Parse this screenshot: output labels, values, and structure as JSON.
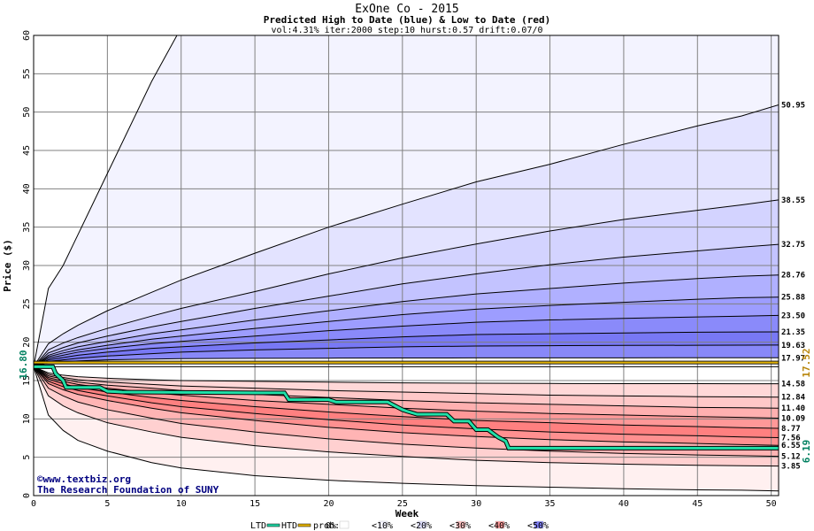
{
  "chart_data": {
    "type": "area",
    "title": "ExOne Co - 2015",
    "subtitle": "Predicted High to Date (blue) &  Low to Date (red)",
    "parameters": "vol:4.31% iter:2000 step:10 hurst:0.57 drift:0.07/0",
    "xlabel": "Week",
    "ylabel": "Price ($)",
    "xlim": [
      0,
      50.5
    ],
    "ylim": [
      0,
      60
    ],
    "grid": true,
    "x_ticks": [
      0,
      5,
      10,
      15,
      20,
      25,
      30,
      35,
      40,
      45,
      50
    ],
    "y_ticks": [
      0,
      5,
      10,
      15,
      20,
      25,
      30,
      35,
      40,
      45,
      50,
      55,
      60
    ],
    "start_price": 16.8,
    "start_label": "16.80",
    "high_marker_label": "17.52",
    "last_label": "6.19",
    "high_series": {
      "x": [
        0,
        1,
        2,
        3,
        5,
        8,
        10,
        15,
        20,
        25,
        30,
        35,
        40,
        45,
        48,
        50.5
      ],
      "contours": [
        {
          "label": "",
          "y": [
            16.8,
            27,
            30,
            34,
            42,
            54,
            61,
            61,
            61,
            61,
            61,
            61,
            61,
            61,
            61,
            61
          ]
        },
        {
          "label": "50.95",
          "y": [
            16.8,
            19.8,
            21.1,
            22.2,
            24.1,
            26.5,
            28.1,
            31.6,
            35.0,
            38.0,
            40.9,
            43.2,
            45.8,
            48.2,
            49.5,
            50.95
          ]
        },
        {
          "label": "38.55",
          "y": [
            16.8,
            19.0,
            19.9,
            20.6,
            21.8,
            23.4,
            24.4,
            26.6,
            28.9,
            31.0,
            32.8,
            34.5,
            36.0,
            37.2,
            37.9,
            38.55
          ]
        },
        {
          "label": "32.75",
          "y": [
            16.8,
            18.6,
            19.3,
            19.9,
            20.8,
            22.0,
            22.7,
            24.4,
            26.0,
            27.6,
            28.9,
            30.1,
            31.1,
            31.9,
            32.4,
            32.75
          ]
        },
        {
          "label": "28.76",
          "y": [
            16.8,
            18.3,
            18.9,
            19.4,
            20.1,
            21.1,
            21.6,
            22.9,
            24.1,
            25.3,
            26.3,
            27.0,
            27.7,
            28.3,
            28.6,
            28.76
          ]
        },
        {
          "label": "25.88",
          "y": [
            16.8,
            18.1,
            18.6,
            19.0,
            19.6,
            20.4,
            20.8,
            21.8,
            22.7,
            23.6,
            24.3,
            24.8,
            25.2,
            25.6,
            25.8,
            25.88
          ]
        },
        {
          "label": "23.50",
          "y": [
            16.8,
            17.9,
            18.3,
            18.7,
            19.2,
            19.8,
            20.1,
            20.8,
            21.5,
            22.1,
            22.6,
            22.9,
            23.1,
            23.3,
            23.4,
            23.5
          ]
        },
        {
          "label": "21.35",
          "y": [
            16.8,
            17.7,
            18.0,
            18.3,
            18.7,
            19.2,
            19.4,
            19.9,
            20.3,
            20.7,
            21.0,
            21.1,
            21.2,
            21.3,
            21.33,
            21.35
          ]
        },
        {
          "label": "19.63",
          "y": [
            16.8,
            17.5,
            17.7,
            17.9,
            18.2,
            18.5,
            18.7,
            19.0,
            19.2,
            19.4,
            19.5,
            19.55,
            19.58,
            19.6,
            19.62,
            19.63
          ]
        },
        {
          "label": "17.97",
          "y": [
            16.8,
            17.3,
            17.45,
            17.55,
            17.7,
            17.8,
            17.85,
            17.9,
            17.92,
            17.94,
            17.95,
            17.96,
            17.96,
            17.97,
            17.97,
            17.97
          ]
        }
      ]
    },
    "low_series": {
      "x": [
        0,
        1,
        2,
        3,
        5,
        8,
        10,
        15,
        20,
        25,
        30,
        35,
        40,
        45,
        48,
        50.5
      ],
      "contours": [
        {
          "label": "14.58",
          "y": [
            16.8,
            16.0,
            15.7,
            15.5,
            15.3,
            15.1,
            15.0,
            14.9,
            14.8,
            14.7,
            14.65,
            14.62,
            14.6,
            14.59,
            14.58,
            14.58
          ]
        },
        {
          "label": "12.84",
          "y": [
            16.8,
            15.8,
            15.4,
            15.1,
            14.8,
            14.5,
            14.3,
            14.0,
            13.7,
            13.5,
            13.3,
            13.1,
            13.0,
            12.9,
            12.86,
            12.84
          ]
        },
        {
          "label": "11.40",
          "y": [
            16.8,
            15.6,
            15.2,
            14.8,
            14.4,
            14.0,
            13.7,
            13.2,
            12.8,
            12.4,
            12.1,
            11.9,
            11.7,
            11.5,
            11.45,
            11.4
          ]
        },
        {
          "label": "10.09",
          "y": [
            16.8,
            15.4,
            14.9,
            14.5,
            14.0,
            13.4,
            13.1,
            12.4,
            11.9,
            11.4,
            11.0,
            10.7,
            10.5,
            10.3,
            10.2,
            10.09
          ]
        },
        {
          "label": "8.77",
          "y": [
            16.8,
            15.2,
            14.6,
            14.1,
            13.5,
            12.8,
            12.4,
            11.6,
            10.9,
            10.3,
            9.8,
            9.5,
            9.2,
            9.0,
            8.85,
            8.77
          ]
        },
        {
          "label": "7.56",
          "y": [
            16.8,
            14.9,
            14.2,
            13.7,
            13.0,
            12.1,
            11.6,
            10.7,
            9.9,
            9.2,
            8.7,
            8.3,
            8.0,
            7.8,
            7.65,
            7.56
          ]
        },
        {
          "label": "6.55",
          "y": [
            16.8,
            14.6,
            13.8,
            13.2,
            12.4,
            11.4,
            10.8,
            9.8,
            8.9,
            8.2,
            7.7,
            7.3,
            7.0,
            6.8,
            6.65,
            6.55
          ]
        },
        {
          "label": "5.12",
          "y": [
            16.8,
            14.0,
            13.0,
            12.2,
            11.2,
            10.1,
            9.4,
            8.3,
            7.4,
            6.7,
            6.2,
            5.8,
            5.5,
            5.3,
            5.2,
            5.12
          ]
        },
        {
          "label": "3.85",
          "y": [
            16.8,
            13.0,
            11.7,
            10.8,
            9.5,
            8.3,
            7.6,
            6.5,
            5.7,
            5.1,
            4.6,
            4.3,
            4.1,
            3.95,
            3.9,
            3.85
          ]
        },
        {
          "label": "",
          "y": [
            16.8,
            10.5,
            8.5,
            7.2,
            5.8,
            4.3,
            3.6,
            2.6,
            2.0,
            1.6,
            1.3,
            1.1,
            0.9,
            0.75,
            0.7,
            0.6
          ]
        }
      ]
    },
    "ltd_trace": {
      "x": [
        0,
        1.3,
        1.5,
        2.0,
        2.2,
        4.5,
        5.0,
        6.0,
        15,
        17,
        17.3,
        20,
        20.5,
        24.0,
        25.0,
        25.3,
        26.0,
        28.0,
        28.5,
        29.5,
        30.0,
        30.8,
        31.5,
        32.0,
        32.2,
        50.5
      ],
      "y": [
        16.8,
        16.8,
        15.9,
        15.0,
        14.1,
        14.1,
        13.6,
        13.5,
        13.4,
        13.4,
        12.5,
        12.5,
        12.2,
        12.2,
        11.2,
        11.0,
        10.6,
        10.6,
        9.7,
        9.7,
        8.6,
        8.6,
        7.6,
        7.1,
        6.19,
        6.19
      ]
    },
    "htd_trace": {
      "x": [
        0,
        50.5
      ],
      "y": [
        16.8,
        16.8
      ]
    },
    "expected_high": 17.52,
    "band_colors": {
      "high": [
        "#f3f3ff",
        "#e3e3ff",
        "#d3d3ff",
        "#c3c3ff",
        "#b0b0ff",
        "#9d9dff",
        "#8a8afa",
        "#7878f5",
        "#8888f8"
      ],
      "low": [
        "#ffd8d8",
        "#ffc8c8",
        "#ffb0b0",
        "#ff9898",
        "#ff8080",
        "#ff9090",
        "#ffb4b4",
        "#ffd0d0",
        "#fff0f0"
      ]
    },
    "legend": {
      "ltd": "LTD",
      "htd": "HTD",
      "prob": "prob:",
      "items": [
        {
          "label": "0%",
          "color": "#ffffff"
        },
        {
          "label": "<10%",
          "color": "#f3f3ff"
        },
        {
          "label": "<20%",
          "color": "#e0e0ff"
        },
        {
          "label": "<30%",
          "color": "#ffc0c0"
        },
        {
          "label": "<40%",
          "color": "#ff9898"
        },
        {
          "label": "<50%",
          "color": "#8080f8"
        }
      ]
    },
    "credit_line1": "©www.textbiz.org",
    "credit_line2": "The Research Foundation of SUNY"
  }
}
